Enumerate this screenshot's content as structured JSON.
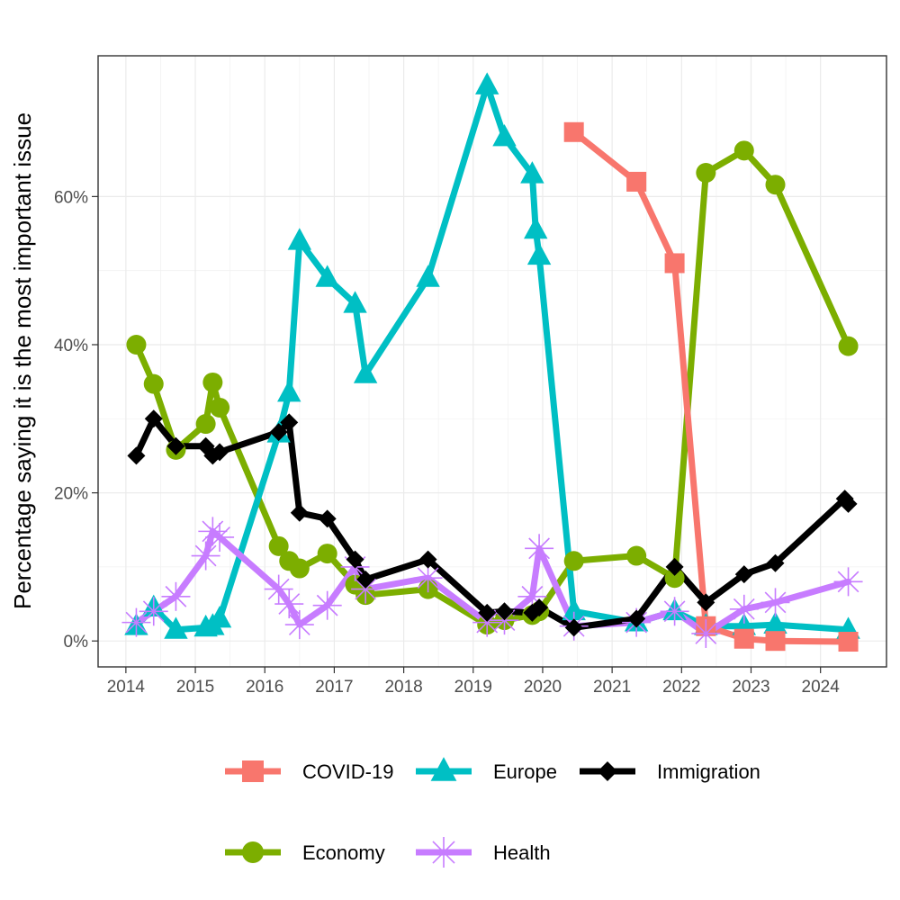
{
  "chart_data": {
    "type": "line",
    "title": "",
    "xlabel": "",
    "ylabel": "Percentage saying it is the most important issue",
    "xlim": [
      2013.6,
      2024.95
    ],
    "ylim": [
      -0.035,
      0.79
    ],
    "x_ticks": [
      2014,
      2015,
      2016,
      2017,
      2018,
      2019,
      2020,
      2021,
      2022,
      2023,
      2024
    ],
    "x_tick_labels": [
      "2014",
      "2015",
      "2016",
      "2017",
      "2018",
      "2019",
      "2020",
      "2021",
      "2022",
      "2023",
      "2024"
    ],
    "y_ticks": [
      0,
      0.2,
      0.4,
      0.6
    ],
    "y_tick_labels": [
      "0%",
      "20%",
      "40%",
      "60%"
    ],
    "grid": true,
    "legend_position": "bottom",
    "legend_order": [
      "COVID-19",
      "Europe",
      "Immigration",
      "Economy",
      "Health"
    ],
    "series": [
      {
        "name": "Economy",
        "color": "#7CAE00",
        "marker": "circle",
        "x": [
          2014.15,
          2014.4,
          2014.72,
          2015.15,
          2015.25,
          2015.35,
          2016.2,
          2016.35,
          2016.5,
          2016.9,
          2017.3,
          2017.45,
          2018.35,
          2019.2,
          2019.45,
          2019.85,
          2019.95,
          2020.45,
          2021.35,
          2021.9,
          2022.35,
          2022.9,
          2023.35,
          2024.4
        ],
        "y": [
          0.4,
          0.347,
          0.258,
          0.293,
          0.349,
          0.315,
          0.128,
          0.108,
          0.098,
          0.118,
          0.076,
          0.062,
          0.07,
          0.022,
          0.028,
          0.035,
          0.04,
          0.108,
          0.115,
          0.085,
          0.632,
          0.662,
          0.616,
          0.398
        ]
      },
      {
        "name": "Europe",
        "color": "#00BFC4",
        "marker": "triangle",
        "x": [
          2014.15,
          2014.4,
          2014.72,
          2015.15,
          2015.25,
          2015.35,
          2016.2,
          2016.35,
          2016.5,
          2016.9,
          2017.3,
          2017.45,
          2018.35,
          2019.2,
          2019.45,
          2019.85,
          2019.9,
          2019.95,
          2020.45,
          2021.35,
          2021.9,
          2022.35,
          2022.9,
          2023.35,
          2024.4
        ],
        "y": [
          0.02,
          0.045,
          0.015,
          0.018,
          0.02,
          0.03,
          0.28,
          0.335,
          0.54,
          0.49,
          0.455,
          0.36,
          0.49,
          0.75,
          0.68,
          0.63,
          0.555,
          0.52,
          0.04,
          0.025,
          0.04,
          0.02,
          0.02,
          0.022,
          0.015
        ]
      },
      {
        "name": "COVID-19",
        "color": "#F8766D",
        "marker": "square",
        "x": [
          2020.45,
          2021.35,
          2021.9,
          2022.35,
          2022.9,
          2023.35,
          2024.4
        ],
        "y": [
          0.687,
          0.62,
          0.51,
          0.02,
          0.003,
          0.0,
          -0.001
        ]
      },
      {
        "name": "Health",
        "color": "#C77CFF",
        "marker": "asterisk",
        "x": [
          2014.15,
          2014.4,
          2014.72,
          2015.15,
          2015.25,
          2015.35,
          2016.2,
          2016.35,
          2016.5,
          2016.9,
          2017.3,
          2017.45,
          2018.35,
          2019.2,
          2019.45,
          2019.85,
          2019.95,
          2020.45,
          2021.35,
          2021.9,
          2022.35,
          2022.9,
          2023.35,
          2024.4
        ],
        "y": [
          0.025,
          0.04,
          0.06,
          0.115,
          0.148,
          0.14,
          0.07,
          0.05,
          0.022,
          0.048,
          0.1,
          0.07,
          0.085,
          0.025,
          0.028,
          0.06,
          0.125,
          0.02,
          0.025,
          0.04,
          0.01,
          0.043,
          0.052,
          0.08
        ]
      },
      {
        "name": "Immigration",
        "color": "#000000",
        "marker": "diamond",
        "x": [
          2014.15,
          2014.4,
          2014.72,
          2015.15,
          2015.25,
          2015.35,
          2016.2,
          2016.35,
          2016.5,
          2016.9,
          2017.3,
          2017.45,
          2018.35,
          2019.2,
          2019.45,
          2019.85,
          2019.95,
          2020.45,
          2021.35,
          2021.9,
          2022.35,
          2022.9,
          2023.35,
          2024.35,
          2024.4
        ],
        "y": [
          0.25,
          0.3,
          0.263,
          0.263,
          0.25,
          0.255,
          0.282,
          0.295,
          0.173,
          0.165,
          0.11,
          0.083,
          0.11,
          0.038,
          0.04,
          0.038,
          0.045,
          0.018,
          0.03,
          0.1,
          0.052,
          0.09,
          0.105,
          0.192,
          0.185
        ]
      }
    ]
  }
}
